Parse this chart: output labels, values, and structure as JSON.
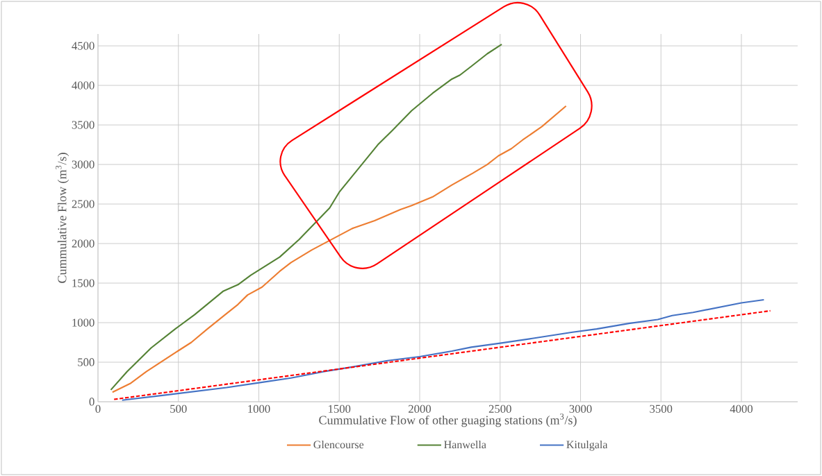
{
  "chart_data": {
    "type": "line",
    "xlabel": "Cummulative Flow of other guaging stations (m$^{3}$/s)",
    "ylabel": "Cummulative Flow (m$^{3}$/s)",
    "xlim": [
      0,
      4350
    ],
    "ylim": [
      0,
      4650
    ],
    "xticks": [
      0,
      500,
      1000,
      1500,
      2000,
      2500,
      3000,
      3500,
      4000
    ],
    "yticks": [
      0,
      500,
      1000,
      1500,
      2000,
      2500,
      3000,
      3500,
      4000,
      4500
    ],
    "grid": true,
    "legend": "bottom",
    "marker": "none",
    "line_style": "solid",
    "series": [
      {
        "name": "Glencourse",
        "color": "#ed7d31",
        "x": [
          90,
          200,
          300,
          480,
          580,
          680,
          790,
          870,
          930,
          1020,
          1130,
          1200,
          1330,
          1450,
          1580,
          1720,
          1880,
          1950,
          2080,
          2200,
          2330,
          2420,
          2490,
          2570,
          2640,
          2760,
          2910
        ],
        "values": [
          120,
          230,
          380,
          620,
          750,
          920,
          1100,
          1230,
          1350,
          1450,
          1650,
          1760,
          1920,
          2050,
          2190,
          2290,
          2430,
          2480,
          2590,
          2740,
          2890,
          3000,
          3110,
          3200,
          3310,
          3480,
          3740
        ]
      },
      {
        "name": "Hanwella",
        "color": "#548235",
        "x": [
          80,
          180,
          330,
          480,
          600,
          780,
          870,
          950,
          1130,
          1250,
          1440,
          1500,
          1580,
          1740,
          1830,
          1950,
          2080,
          2200,
          2250,
          2320,
          2420,
          2510
        ],
        "values": [
          150,
          380,
          680,
          920,
          1100,
          1400,
          1480,
          1600,
          1830,
          2050,
          2450,
          2650,
          2850,
          3250,
          3430,
          3680,
          3900,
          4080,
          4130,
          4240,
          4400,
          4520
        ]
      },
      {
        "name": "Kitulgala",
        "color": "#4472c4",
        "x": [
          150,
          400,
          600,
          800,
          1000,
          1200,
          1400,
          1580,
          1800,
          2000,
          2200,
          2320,
          2500,
          2700,
          2950,
          3100,
          3300,
          3480,
          3570,
          3700,
          4000,
          4140
        ],
        "values": [
          20,
          80,
          130,
          180,
          240,
          300,
          380,
          440,
          520,
          570,
          640,
          690,
          740,
          800,
          880,
          920,
          990,
          1040,
          1090,
          1130,
          1250,
          1290
        ]
      },
      {
        "type": "line",
        "color": "#ff0000",
        "line_style": "dashed",
        "x": [
          100,
          4180
        ],
        "values": [
          30,
          1150
        ]
      }
    ]
  }
}
